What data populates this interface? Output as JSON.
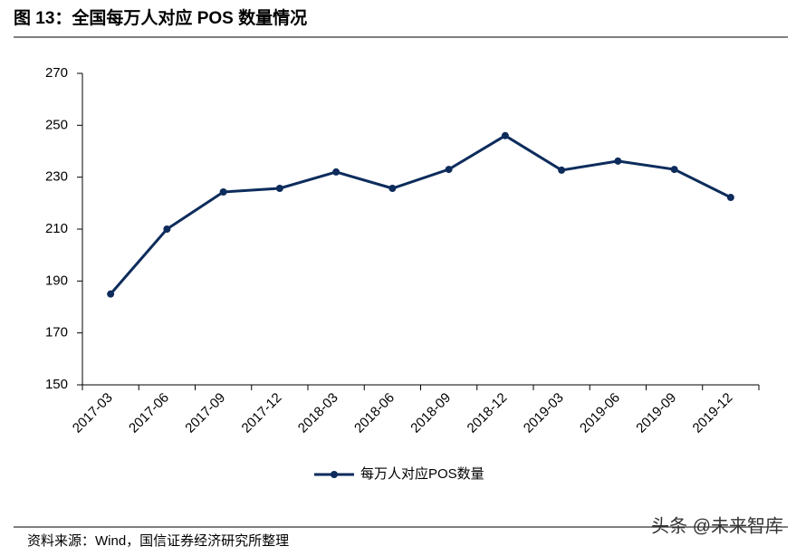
{
  "chart_data": {
    "type": "line",
    "title": "图 13：全国每万人对应 POS 数量情况",
    "categories": [
      "2017-03",
      "2017-06",
      "2017-09",
      "2017-12",
      "2018-03",
      "2018-06",
      "2018-09",
      "2018-12",
      "2019-03",
      "2019-06",
      "2019-09",
      "2019-12"
    ],
    "series": [
      {
        "name": "每万人对应POS数量",
        "color": "#0d2c5c",
        "values": [
          185,
          210,
          224.3,
          225.7,
          232,
          225.7,
          233,
          246,
          232.7,
          236.2,
          233,
          222.2
        ]
      }
    ],
    "ylim": [
      150,
      270
    ],
    "yticks": [
      150,
      170,
      190,
      210,
      230,
      250,
      270
    ],
    "grid": false,
    "legend": "bottom",
    "source": "资料来源：Wind，国信证券经济研究所整理",
    "watermark": "头条 @未来智库"
  }
}
